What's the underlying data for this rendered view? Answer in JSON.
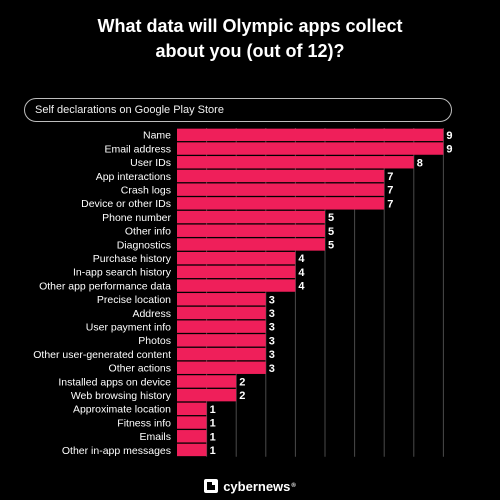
{
  "title_line1": "What data will Olympic apps collect",
  "title_line2": "about you (out of 12)?",
  "subtitle": "Self declarations on Google Play Store",
  "brand": "cybernews",
  "brand_mark": "®",
  "colors": {
    "bar": "#ef1f5a",
    "grid": "#4a4a4a",
    "background": "#000000"
  },
  "chart_data": {
    "type": "bar",
    "orientation": "horizontal",
    "title": "What data will Olympic apps collect about you (out of 12)?",
    "subtitle": "Self declarations on Google Play Store",
    "xlim": [
      0,
      9
    ],
    "grid": true,
    "categories": [
      "Name",
      "Email address",
      "User IDs",
      "App interactions",
      "Crash logs",
      "Device or other IDs",
      "Phone number",
      "Other info",
      "Diagnostics",
      "Purchase history",
      "In-app search history",
      "Other app performance data",
      "Precise location",
      "Address",
      "User payment info",
      "Photos",
      "Other user-generated content",
      "Other actions",
      "Installed apps on device",
      "Web browsing history",
      "Approximate location",
      "Fitness info",
      "Emails",
      "Other in-app messages"
    ],
    "values": [
      9,
      9,
      8,
      7,
      7,
      7,
      5,
      5,
      5,
      4,
      4,
      4,
      3,
      3,
      3,
      3,
      3,
      3,
      2,
      2,
      1,
      1,
      1,
      1
    ]
  }
}
